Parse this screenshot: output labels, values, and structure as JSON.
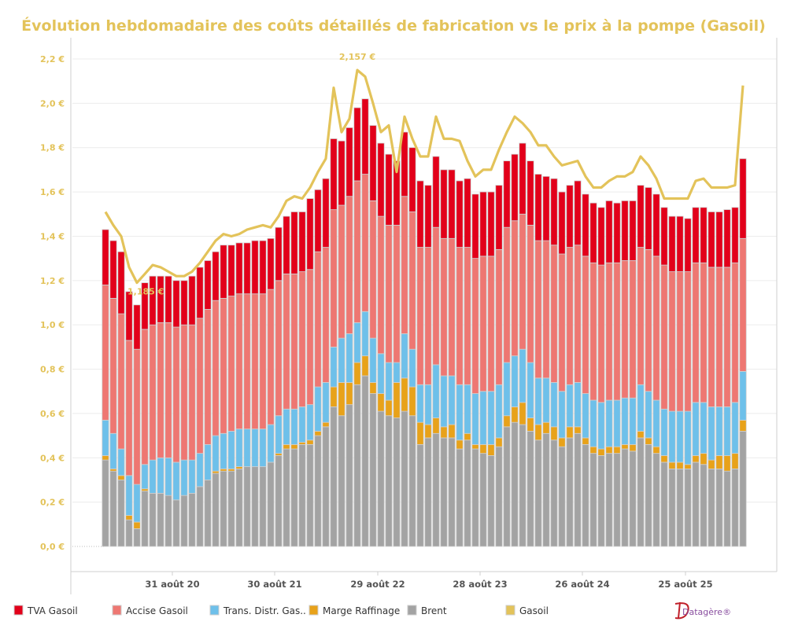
{
  "chart_data": {
    "type": "bar",
    "stacked": true,
    "title": "Évolution hebdomadaire des coûts détaillés de fabrication vs le prix à la pompe (Gasoil)",
    "title_color": "#e3c35a",
    "ylim": [
      0,
      2.2
    ],
    "y_ticks": [
      "0,0 €",
      "0,2 €",
      "0,4 €",
      "0,6 €",
      "0,8 €",
      "1,0 €",
      "1,2 €",
      "1,4 €",
      "1,6 €",
      "1,8 €",
      "2,0 €",
      "2,2 €"
    ],
    "x_tick_labels": [
      "31 août 20",
      "30 août 21",
      "29 août 22",
      "28 août 23",
      "26 août 24",
      "25 août 25"
    ],
    "grid": true,
    "legend_position": "bottom",
    "series": [
      {
        "name": "Brent",
        "kind": "bar",
        "color": "#a3a3a3",
        "values": [
          0.39,
          0.34,
          0.3,
          0.12,
          0.08,
          0.25,
          0.24,
          0.24,
          0.23,
          0.21,
          0.23,
          0.24,
          0.27,
          0.3,
          0.33,
          0.34,
          0.34,
          0.35,
          0.36,
          0.36,
          0.36,
          0.38,
          0.41,
          0.44,
          0.44,
          0.46,
          0.46,
          0.5,
          0.54,
          0.63,
          0.59,
          0.64,
          0.73,
          0.77,
          0.69,
          0.61,
          0.59,
          0.58,
          0.61,
          0.59,
          0.46,
          0.49,
          0.51,
          0.49,
          0.49,
          0.44,
          0.48,
          0.44,
          0.42,
          0.41,
          0.45,
          0.54,
          0.56,
          0.55,
          0.52,
          0.48,
          0.51,
          0.48,
          0.45,
          0.49,
          0.51,
          0.46,
          0.42,
          0.41,
          0.42,
          0.42,
          0.44,
          0.43,
          0.49,
          0.46,
          0.42,
          0.38,
          0.35,
          0.35,
          0.35,
          0.38,
          0.37,
          0.35,
          0.35,
          0.34,
          0.35,
          0.52
        ]
      },
      {
        "name": "Marge Raffinage",
        "kind": "bar",
        "color": "#e8a21a",
        "values": [
          0.02,
          0.01,
          0.02,
          0.02,
          0.03,
          0.01,
          0,
          0,
          0,
          0,
          0,
          0,
          0,
          0,
          0.01,
          0.01,
          0.01,
          0.01,
          0,
          0,
          0,
          0,
          0.01,
          0.02,
          0.02,
          0.01,
          0.02,
          0.02,
          0.02,
          0.09,
          0.15,
          0.1,
          0.1,
          0.09,
          0.05,
          0.08,
          0.07,
          0.16,
          0.15,
          0.13,
          0.1,
          0.06,
          0.07,
          0.05,
          0.06,
          0.04,
          0.03,
          0.02,
          0.04,
          0.05,
          0.04,
          0.05,
          0.07,
          0.1,
          0.06,
          0.07,
          0.05,
          0.06,
          0.04,
          0.05,
          0.03,
          0.03,
          0.03,
          0.03,
          0.03,
          0.03,
          0.02,
          0.03,
          0.03,
          0.03,
          0.03,
          0.03,
          0.03,
          0.03,
          0.02,
          0.03,
          0.05,
          0.04,
          0.06,
          0.07,
          0.07,
          0.05
        ]
      },
      {
        "name": "Trans. Distr. Gas..",
        "kind": "bar",
        "color": "#6ec0ea",
        "values": [
          0.16,
          0.16,
          0.12,
          0.18,
          0.17,
          0.11,
          0.15,
          0.16,
          0.17,
          0.17,
          0.16,
          0.15,
          0.15,
          0.16,
          0.16,
          0.16,
          0.17,
          0.17,
          0.17,
          0.17,
          0.17,
          0.17,
          0.17,
          0.16,
          0.16,
          0.16,
          0.16,
          0.2,
          0.18,
          0.18,
          0.2,
          0.22,
          0.18,
          0.2,
          0.2,
          0.18,
          0.17,
          0.09,
          0.2,
          0.17,
          0.17,
          0.18,
          0.24,
          0.23,
          0.22,
          0.25,
          0.22,
          0.23,
          0.24,
          0.24,
          0.24,
          0.24,
          0.23,
          0.24,
          0.25,
          0.21,
          0.2,
          0.2,
          0.21,
          0.19,
          0.2,
          0.2,
          0.21,
          0.21,
          0.21,
          0.21,
          0.21,
          0.21,
          0.21,
          0.21,
          0.21,
          0.21,
          0.23,
          0.23,
          0.24,
          0.24,
          0.23,
          0.24,
          0.22,
          0.22,
          0.23,
          0.22
        ]
      },
      {
        "name": "Accise Gasoil",
        "kind": "bar",
        "color": "#ee7772",
        "values": [
          0.61,
          0.61,
          0.61,
          0.61,
          0.61,
          0.61,
          0.61,
          0.61,
          0.61,
          0.61,
          0.61,
          0.61,
          0.61,
          0.61,
          0.61,
          0.61,
          0.61,
          0.61,
          0.61,
          0.61,
          0.61,
          0.61,
          0.61,
          0.61,
          0.61,
          0.61,
          0.61,
          0.61,
          0.61,
          0.62,
          0.6,
          0.62,
          0.64,
          0.62,
          0.62,
          0.62,
          0.62,
          0.62,
          0.62,
          0.62,
          0.62,
          0.62,
          0.62,
          0.62,
          0.62,
          0.62,
          0.62,
          0.61,
          0.61,
          0.61,
          0.61,
          0.61,
          0.61,
          0.61,
          0.62,
          0.62,
          0.62,
          0.62,
          0.62,
          0.62,
          0.62,
          0.62,
          0.62,
          0.62,
          0.62,
          0.62,
          0.62,
          0.62,
          0.62,
          0.64,
          0.65,
          0.65,
          0.63,
          0.63,
          0.63,
          0.63,
          0.63,
          0.63,
          0.63,
          0.63,
          0.63,
          0.6
        ]
      },
      {
        "name": "TVA Gasoil",
        "kind": "bar",
        "color": "#e2001a",
        "values": [
          0.25,
          0.26,
          0.28,
          0.22,
          0.2,
          0.21,
          0.22,
          0.21,
          0.21,
          0.21,
          0.2,
          0.22,
          0.23,
          0.22,
          0.22,
          0.24,
          0.23,
          0.23,
          0.23,
          0.24,
          0.24,
          0.23,
          0.24,
          0.26,
          0.28,
          0.27,
          0.32,
          0.28,
          0.31,
          0.32,
          0.29,
          0.31,
          0.33,
          0.34,
          0.34,
          0.33,
          0.32,
          0.29,
          0.29,
          0.29,
          0.3,
          0.28,
          0.32,
          0.31,
          0.31,
          0.3,
          0.31,
          0.29,
          0.29,
          0.29,
          0.29,
          0.3,
          0.3,
          0.32,
          0.29,
          0.3,
          0.29,
          0.3,
          0.28,
          0.28,
          0.29,
          0.28,
          0.27,
          0.26,
          0.28,
          0.27,
          0.27,
          0.27,
          0.28,
          0.28,
          0.28,
          0.26,
          0.25,
          0.25,
          0.24,
          0.25,
          0.25,
          0.25,
          0.25,
          0.26,
          0.25,
          0.36
        ]
      },
      {
        "name": "Gasoil",
        "kind": "line",
        "color": "#e3c35a",
        "values": [
          1.51,
          1.45,
          1.4,
          1.26,
          1.19,
          1.23,
          1.27,
          1.26,
          1.24,
          1.22,
          1.22,
          1.24,
          1.28,
          1.33,
          1.38,
          1.41,
          1.4,
          1.41,
          1.43,
          1.44,
          1.45,
          1.44,
          1.49,
          1.56,
          1.58,
          1.57,
          1.62,
          1.69,
          1.75,
          2.07,
          1.87,
          1.93,
          2.15,
          2.12,
          2.0,
          1.87,
          1.9,
          1.69,
          1.94,
          1.84,
          1.76,
          1.76,
          1.94,
          1.84,
          1.84,
          1.83,
          1.74,
          1.67,
          1.7,
          1.7,
          1.79,
          1.87,
          1.94,
          1.91,
          1.87,
          1.81,
          1.81,
          1.76,
          1.72,
          1.73,
          1.74,
          1.67,
          1.62,
          1.62,
          1.65,
          1.67,
          1.67,
          1.69,
          1.76,
          1.72,
          1.66,
          1.57,
          1.57,
          1.57,
          1.57,
          1.65,
          1.66,
          1.62,
          1.62,
          1.62,
          1.63,
          2.08
        ]
      }
    ],
    "annotations": [
      {
        "text": "2,157 €",
        "series": "Gasoil",
        "kind": "max"
      },
      {
        "text": "1,185 €",
        "series": "Gasoil",
        "kind": "min"
      }
    ],
    "legend": [
      {
        "label": "TVA Gasoil",
        "color": "#e2001a"
      },
      {
        "label": "Accise Gasoil",
        "color": "#ee7772"
      },
      {
        "label": "Trans. Distr. Gas..",
        "color": "#6ec0ea"
      },
      {
        "label": "Marge Raffinage",
        "color": "#e8a21a"
      },
      {
        "label": "Brent",
        "color": "#a3a3a3"
      },
      {
        "label": "Gasoil",
        "color": "#e3c35a"
      }
    ]
  },
  "logo": {
    "text": "Datagère®"
  }
}
